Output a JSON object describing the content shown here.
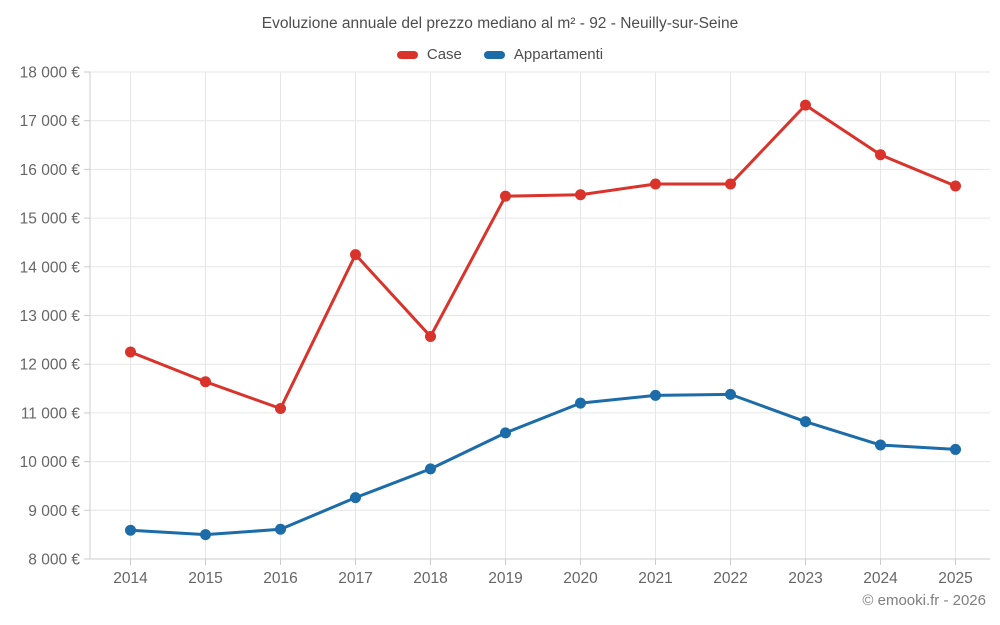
{
  "footer": {
    "text": "© emooki.fr - 2026"
  },
  "chart_data": {
    "type": "line",
    "title": "Evoluzione annuale del prezzo mediano al m² - 92 - Neuilly-sur-Seine",
    "xlabel": "",
    "ylabel": "",
    "categories": [
      "2014",
      "2015",
      "2016",
      "2017",
      "2018",
      "2019",
      "2020",
      "2021",
      "2022",
      "2023",
      "2024",
      "2025"
    ],
    "series": [
      {
        "name": "Case",
        "color": "#d9332b",
        "values": [
          12250,
          11640,
          11090,
          14250,
          12570,
          15450,
          15480,
          15700,
          15700,
          17320,
          16300,
          15660
        ]
      },
      {
        "name": "Appartamenti",
        "color": "#1b6ca8",
        "values": [
          8590,
          8500,
          8610,
          9260,
          9850,
          10590,
          11200,
          11360,
          11380,
          10820,
          10340,
          10250
        ]
      }
    ],
    "ylim": [
      8000,
      18000
    ],
    "ytick_values": [
      8000,
      9000,
      10000,
      11000,
      12000,
      13000,
      14000,
      15000,
      16000,
      17000,
      18000
    ],
    "ytick_labels": [
      "8 000 €",
      "9 000 €",
      "10 000 €",
      "11 000 €",
      "12 000 €",
      "13 000 €",
      "14 000 €",
      "15 000 €",
      "16 000 €",
      "17 000 €",
      "18 000 €"
    ],
    "grid": true,
    "legend_position": "top",
    "grid_color": "#e6e6e6",
    "axis_color": "#cccccc",
    "tick_label_color": "#666666"
  }
}
